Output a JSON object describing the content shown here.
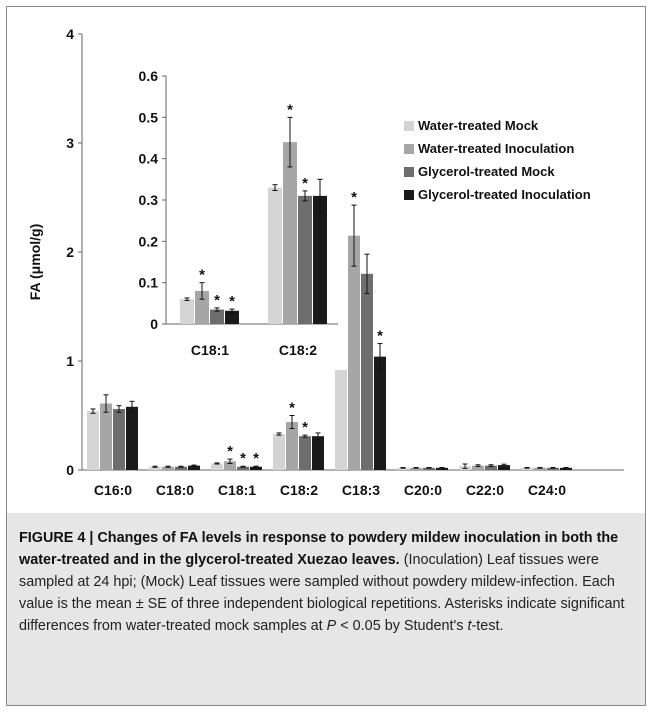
{
  "chart_data": [
    {
      "type": "bar",
      "ylabel": "FA (μmol/g)",
      "ylim": [
        0,
        4
      ],
      "yticks": [
        "0",
        "1",
        "2",
        "3",
        "4"
      ],
      "categories": [
        "C16:0",
        "C18:0",
        "C18:1",
        "C18:2",
        "C18:3",
        "C20:0",
        "C22:0",
        "C24:0"
      ],
      "series": [
        {
          "name": "Water-treated Mock",
          "color": "#d4d4d4",
          "values": [
            0.54,
            0.03,
            0.06,
            0.33,
            1.5,
            0.02,
            0.035,
            0.02
          ],
          "errors": [
            0.02,
            0.005,
            0.005,
            0.01,
            0.1,
            0.003,
            0.02,
            0.003
          ],
          "significant": [
            false,
            false,
            false,
            false,
            false,
            false,
            false,
            false
          ]
        },
        {
          "name": "Water-treated Inoculation",
          "color": "#a6a6a6",
          "values": [
            0.61,
            0.03,
            0.08,
            0.44,
            2.15,
            0.02,
            0.04,
            0.02
          ],
          "errors": [
            0.08,
            0.005,
            0.02,
            0.06,
            0.28,
            0.003,
            0.008,
            0.003
          ],
          "significant": [
            false,
            false,
            true,
            true,
            true,
            false,
            false,
            false
          ]
        },
        {
          "name": "Glycerol-treated Mock",
          "color": "#6e6e6e",
          "values": [
            0.56,
            0.03,
            0.03,
            0.31,
            1.8,
            0.02,
            0.04,
            0.02
          ],
          "errors": [
            0.03,
            0.005,
            0.005,
            0.01,
            0.18,
            0.003,
            0.008,
            0.003
          ],
          "significant": [
            false,
            false,
            true,
            true,
            false,
            false,
            false,
            false
          ]
        },
        {
          "name": "Glycerol-treated Inoculation",
          "color": "#1a1a1a",
          "values": [
            0.58,
            0.04,
            0.03,
            0.31,
            1.04,
            0.02,
            0.045,
            0.02
          ],
          "errors": [
            0.05,
            0.005,
            0.005,
            0.03,
            0.12,
            0.003,
            0.008,
            0.003
          ],
          "significant": [
            false,
            false,
            true,
            false,
            true,
            false,
            false,
            false
          ]
        }
      ]
    },
    {
      "type": "bar",
      "inset": true,
      "ylim": [
        0,
        0.6
      ],
      "yticks": [
        "0",
        "0.1",
        "0.2",
        "0.3",
        "0.4",
        "0.5",
        "0.6"
      ],
      "categories": [
        "C18:1",
        "C18:2"
      ],
      "series": [
        {
          "name": "Water-treated Mock",
          "color": "#d4d4d4",
          "values": [
            0.06,
            0.33
          ],
          "errors": [
            0.003,
            0.007
          ],
          "significant": [
            false,
            false
          ]
        },
        {
          "name": "Water-treated Inoculation",
          "color": "#a6a6a6",
          "values": [
            0.08,
            0.44
          ],
          "errors": [
            0.02,
            0.06
          ],
          "significant": [
            true,
            true
          ]
        },
        {
          "name": "Glycerol-treated Mock",
          "color": "#6e6e6e",
          "values": [
            0.035,
            0.31
          ],
          "errors": [
            0.004,
            0.012
          ],
          "significant": [
            true,
            true
          ]
        },
        {
          "name": "Glycerol-treated Inoculation",
          "color": "#1a1a1a",
          "values": [
            0.032,
            0.31
          ],
          "errors": [
            0.004,
            0.04
          ],
          "significant": [
            true,
            false
          ]
        }
      ]
    }
  ],
  "legend": {
    "placement": "right",
    "items": [
      "Water-treated Mock",
      "Water-treated Inoculation",
      "Glycerol-treated Mock",
      "Glycerol-treated Inoculation"
    ]
  },
  "caption": {
    "figure_title": "FIGURE 4 | Changes of FA levels in response to powdery mildew inoculation in both the water-treated and in the glycerol-treated Xuezao leaves.",
    "body_1": "(Inoculation) Leaf tissues were sampled at 24 hpi; (Mock) Leaf tissues were sampled without powdery mildew-infection. Each value is the mean ± SE of three independent biological repetitions. Asterisks indicate significant differences from water-treated mock samples at",
    "p_symbol": "P",
    "body_2": "< 0.05 by Student's",
    "t_symbol": "t",
    "body_3": "-test."
  }
}
